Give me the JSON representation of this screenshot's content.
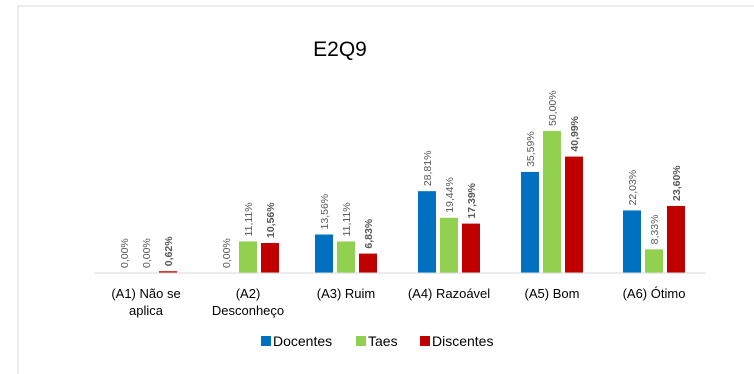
{
  "chart_data": {
    "type": "bar",
    "title": "E2Q9",
    "categories": [
      [
        "(A1) Não se",
        "aplica"
      ],
      [
        "(A2)",
        "Desconheço"
      ],
      [
        "(A3) Ruim"
      ],
      [
        "(A4) Razoável"
      ],
      [
        "(A5) Bom"
      ],
      [
        "(A6) Ótimo"
      ]
    ],
    "series": [
      {
        "name": "Docentes",
        "color": "#0070c0",
        "values": [
          0.0,
          0.0,
          13.56,
          28.81,
          35.59,
          22.03
        ],
        "labels": [
          "0,00%",
          "0,00%",
          "13,56%",
          "28,81%",
          "35,59%",
          "22,03%"
        ],
        "bold": false
      },
      {
        "name": "Taes",
        "color": "#92d050",
        "values": [
          0.0,
          11.11,
          11.11,
          19.44,
          50.0,
          8.33
        ],
        "labels": [
          "0,00%",
          "11,11%",
          "11,11%",
          "19,44%",
          "50,00%",
          "8,33%"
        ],
        "bold": false
      },
      {
        "name": "Discentes",
        "color": "#c00000",
        "values": [
          0.62,
          10.56,
          6.83,
          17.39,
          40.99,
          23.6
        ],
        "labels": [
          "0,62%",
          "10,56%",
          "6,83%",
          "17,39%",
          "40,99%",
          "23,60%"
        ],
        "bold": true
      }
    ],
    "ylim": [
      0,
      50
    ],
    "legend": "bottom",
    "grid": false
  }
}
